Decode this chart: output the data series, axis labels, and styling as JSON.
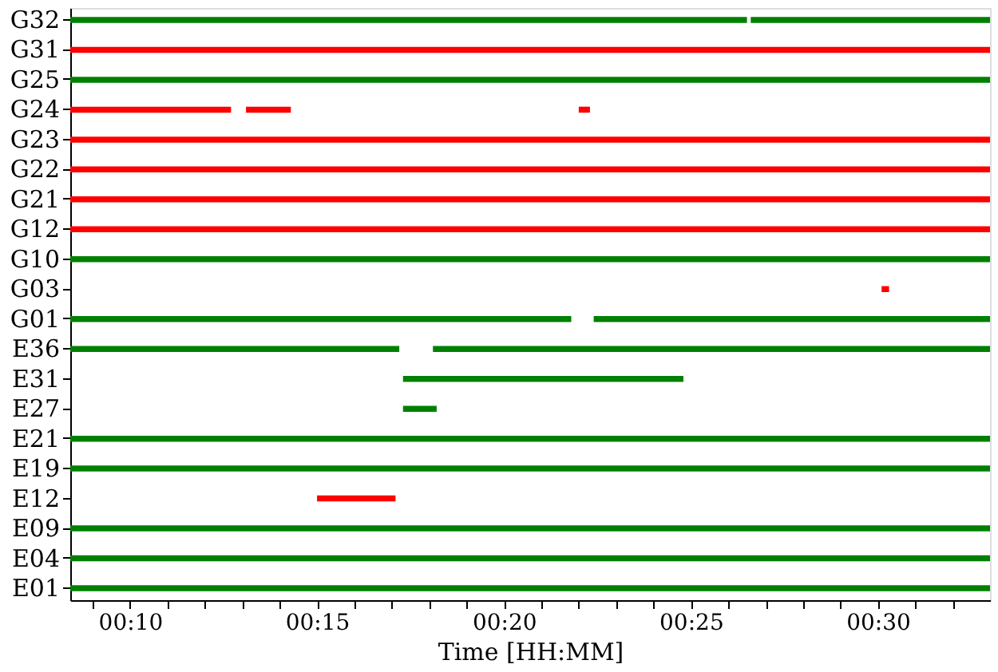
{
  "chart_data": {
    "type": "bar",
    "orientation": "horizontal",
    "xlabel": "Time [HH:MM]",
    "categories": [
      "G32",
      "G31",
      "G25",
      "G24",
      "G23",
      "G22",
      "G21",
      "G12",
      "G10",
      "G03",
      "G01",
      "E36",
      "E31",
      "E27",
      "E21",
      "E19",
      "E12",
      "E09",
      "E04",
      "E01"
    ],
    "xlim": [
      8.4,
      33.0
    ],
    "xticks": [
      {
        "value": 9,
        "label": null
      },
      {
        "value": 10,
        "label": "00:10"
      },
      {
        "value": 11,
        "label": null
      },
      {
        "value": 12,
        "label": null
      },
      {
        "value": 13,
        "label": null
      },
      {
        "value": 14,
        "label": null
      },
      {
        "value": 15,
        "label": "00:15"
      },
      {
        "value": 16,
        "label": null
      },
      {
        "value": 17,
        "label": null
      },
      {
        "value": 18,
        "label": null
      },
      {
        "value": 19,
        "label": null
      },
      {
        "value": 20,
        "label": "00:20"
      },
      {
        "value": 21,
        "label": null
      },
      {
        "value": 22,
        "label": null
      },
      {
        "value": 23,
        "label": null
      },
      {
        "value": 24,
        "label": null
      },
      {
        "value": 25,
        "label": "00:25"
      },
      {
        "value": 26,
        "label": null
      },
      {
        "value": 27,
        "label": null
      },
      {
        "value": 28,
        "label": null
      },
      {
        "value": 29,
        "label": null
      },
      {
        "value": 30,
        "label": "00:30"
      },
      {
        "value": 31,
        "label": null
      },
      {
        "value": 32,
        "label": null
      }
    ],
    "series": [
      {
        "colors": [
          "#008000",
          "#ff0000",
          "#008000",
          "#ff0000",
          "#ff0000",
          "#ff0000",
          "#ff0000",
          "#ff0000",
          "#008000",
          "#ff0000",
          "#008000",
          "#008000",
          "#008000",
          "#008000",
          "#008000",
          "#008000",
          "#ff0000",
          "#008000",
          "#008000",
          "#008000"
        ],
        "base": [
          8.4,
          8.4,
          8.4,
          8.4,
          8.4,
          8.4,
          8.4,
          8.4,
          8.4,
          30.1,
          8.4,
          8.4,
          17.3,
          17.3,
          8.4,
          8.4,
          15.0,
          8.4,
          8.4,
          8.4
        ],
        "values": [
          18.1,
          24.6,
          24.6,
          4.3,
          24.6,
          24.6,
          24.6,
          24.6,
          24.6,
          0.2,
          13.4,
          8.8,
          7.5,
          0.9,
          24.6,
          24.6,
          2.1,
          24.6,
          24.6,
          24.6
        ]
      },
      {
        "colors": [
          "#008000",
          null,
          null,
          "#ff0000",
          null,
          null,
          null,
          null,
          null,
          null,
          "#008000",
          "#008000",
          null,
          null,
          null,
          null,
          null,
          null,
          null,
          null
        ],
        "base": [
          26.6,
          null,
          null,
          13.1,
          null,
          null,
          null,
          null,
          null,
          null,
          22.4,
          18.1,
          null,
          null,
          null,
          null,
          null,
          null,
          null,
          null
        ],
        "values": [
          6.4,
          null,
          null,
          1.2,
          null,
          null,
          null,
          null,
          null,
          null,
          10.6,
          14.9,
          null,
          null,
          null,
          null,
          null,
          null,
          null,
          null
        ]
      },
      {
        "colors": [
          null,
          null,
          null,
          "#ff0000",
          null,
          null,
          null,
          null,
          null,
          null,
          null,
          null,
          null,
          null,
          null,
          null,
          null,
          null,
          null,
          null
        ],
        "base": [
          null,
          null,
          null,
          22.0,
          null,
          null,
          null,
          null,
          null,
          null,
          null,
          null,
          null,
          null,
          null,
          null,
          null,
          null,
          null,
          null
        ],
        "values": [
          null,
          null,
          null,
          0.3,
          null,
          null,
          null,
          null,
          null,
          null,
          null,
          null,
          null,
          null,
          null,
          null,
          null,
          null,
          null,
          null
        ]
      }
    ]
  }
}
